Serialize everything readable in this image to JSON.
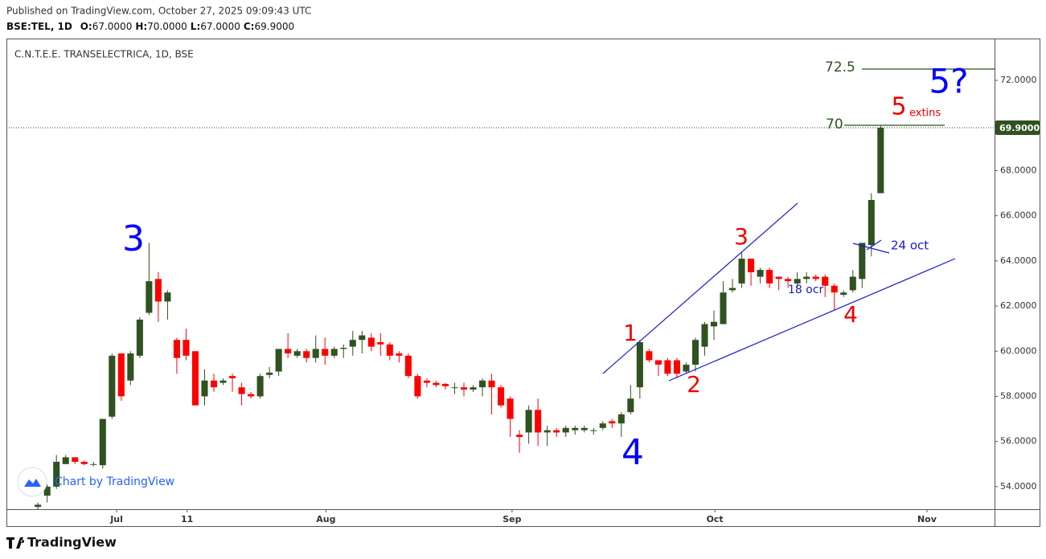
{
  "header": {
    "published": "Published on TradingView.com, October 27, 2025 09:09:43 UTC",
    "symbol": "BSE:TEL, 1D",
    "ohlc": [
      {
        "key": "O:",
        "value": "67.0000"
      },
      {
        "key": "H:",
        "value": "70.0000"
      },
      {
        "key": "L:",
        "value": "67.0000"
      },
      {
        "key": "C:",
        "value": "69.9000"
      }
    ]
  },
  "chart_data": {
    "type": "candlestick",
    "title": "C.N.T.E.E. TRANSELECTRICA, 1D, BSE",
    "up_color": "#2f5220",
    "down_color": "#ff0000",
    "open": [
      53.1,
      53.6,
      54.0,
      55.0,
      55.3,
      55.1,
      55.0,
      54.95,
      57.1,
      59.9,
      58.7,
      59.8,
      61.7,
      63.2,
      62.2,
      60.5,
      60.5,
      60.0,
      58.0,
      58.7,
      58.6,
      58.9,
      58.4,
      58.1,
      58.0,
      58.95,
      59.1,
      60.1,
      59.8,
      60.0,
      59.7,
      60.1,
      59.8,
      60.1,
      60.2,
      60.5,
      60.6,
      60.4,
      60.3,
      59.9,
      59.8,
      58.9,
      58.7,
      58.6,
      58.55,
      58.4,
      58.4,
      58.3,
      58.4,
      58.7,
      58.4,
      57.9,
      56.3,
      56.4,
      57.4,
      56.4,
      56.5,
      56.4,
      56.5,
      56.5,
      56.5,
      56.6,
      56.9,
      56.8,
      57.3,
      58.4,
      60.0,
      59.6,
      59.6,
      59.6,
      59.1,
      59.4,
      60.2,
      61.1,
      61.2,
      62.7,
      63.0,
      64.1,
      63.3,
      63.6,
      63.3,
      63.2,
      63.0,
      63.2,
      63.3,
      63.3,
      62.9,
      62.5,
      62.7,
      63.2,
      64.7,
      67.0
    ],
    "high": [
      53.3,
      54.1,
      55.4,
      55.4,
      55.3,
      55.15,
      55.1,
      57.0,
      59.9,
      59.9,
      60.0,
      61.5,
      64.8,
      63.5,
      62.7,
      60.6,
      61.0,
      60.0,
      59.2,
      59.0,
      58.8,
      59.0,
      58.6,
      58.2,
      59.0,
      59.3,
      60.1,
      60.8,
      60.1,
      60.1,
      60.7,
      60.6,
      60.2,
      60.3,
      60.9,
      60.9,
      60.8,
      60.8,
      60.4,
      60.0,
      59.9,
      59.0,
      58.8,
      58.7,
      58.6,
      58.6,
      58.6,
      58.5,
      58.8,
      59.0,
      58.5,
      58.0,
      56.5,
      57.6,
      57.9,
      56.7,
      56.6,
      56.7,
      56.7,
      56.7,
      56.6,
      56.9,
      57.0,
      57.3,
      58.5,
      60.5,
      60.1,
      59.6,
      59.7,
      59.7,
      59.5,
      60.6,
      61.3,
      61.8,
      63.1,
      63.2,
      64.4,
      64.1,
      63.7,
      63.7,
      63.3,
      63.3,
      63.5,
      63.5,
      63.4,
      63.4,
      63.0,
      62.7,
      63.6,
      64.8,
      67.0,
      70.0
    ],
    "low": [
      53.0,
      53.3,
      53.9,
      55.0,
      55.0,
      54.95,
      54.9,
      54.8,
      57.0,
      57.8,
      58.5,
      59.7,
      61.6,
      61.3,
      61.4,
      59.0,
      59.6,
      57.6,
      57.6,
      58.2,
      58.5,
      58.2,
      57.6,
      57.9,
      57.9,
      58.8,
      58.9,
      59.7,
      59.7,
      59.5,
      59.5,
      59.4,
      59.7,
      59.7,
      59.8,
      59.9,
      60.0,
      59.8,
      59.6,
      59.5,
      58.8,
      57.9,
      58.4,
      58.4,
      58.3,
      58.1,
      58.0,
      58.2,
      58.0,
      57.2,
      57.5,
      56.2,
      55.5,
      55.9,
      55.8,
      55.8,
      56.2,
      56.2,
      56.3,
      56.4,
      56.3,
      56.5,
      56.6,
      56.2,
      57.2,
      57.9,
      59.5,
      58.9,
      58.9,
      58.8,
      59.0,
      59.1,
      59.8,
      60.5,
      61.2,
      62.6,
      62.8,
      62.9,
      63.0,
      62.8,
      62.7,
      62.8,
      62.8,
      63.0,
      63.1,
      62.4,
      61.8,
      62.4,
      62.6,
      62.8,
      64.2,
      67.0
    ],
    "close": [
      53.2,
      54.0,
      55.1,
      55.3,
      55.1,
      55.0,
      55.0,
      57.0,
      59.8,
      58.0,
      59.9,
      61.4,
      63.1,
      62.2,
      62.6,
      59.7,
      59.8,
      57.6,
      58.7,
      58.4,
      58.7,
      58.8,
      58.1,
      58.0,
      58.9,
      59.05,
      60.1,
      59.9,
      60.0,
      59.7,
      60.1,
      59.8,
      60.1,
      60.15,
      60.5,
      60.7,
      60.2,
      60.3,
      59.8,
      59.8,
      58.9,
      58.0,
      58.6,
      58.5,
      58.45,
      58.4,
      58.3,
      58.4,
      58.7,
      58.4,
      57.6,
      57.0,
      56.2,
      57.4,
      56.4,
      56.5,
      56.4,
      56.6,
      56.6,
      56.6,
      56.5,
      56.8,
      56.8,
      57.2,
      57.9,
      60.4,
      59.6,
      59.4,
      59.0,
      59.0,
      59.4,
      60.5,
      61.2,
      61.3,
      62.6,
      62.8,
      64.1,
      63.5,
      63.6,
      63.0,
      63.2,
      63.1,
      63.2,
      63.3,
      63.2,
      62.9,
      62.6,
      62.6,
      63.3,
      64.8,
      66.7,
      69.9
    ],
    "xlim": [
      -3.4,
      103.3
    ],
    "xticks": [
      {
        "value": 8.5,
        "label": "Jul"
      },
      {
        "value": 16.1,
        "label": "11"
      },
      {
        "value": 31.1,
        "label": "Aug"
      },
      {
        "value": 51.2,
        "label": "Sep"
      },
      {
        "value": 73.1,
        "label": "Oct"
      },
      {
        "value": 96.0,
        "label": "Nov"
      }
    ],
    "ylim": [
      53.0,
      73.85
    ],
    "yticks": [
      {
        "value": 54,
        "label": "54.0000"
      },
      {
        "value": 56,
        "label": "56.0000"
      },
      {
        "value": 58,
        "label": "58.0000"
      },
      {
        "value": 60,
        "label": "60.0000"
      },
      {
        "value": 62,
        "label": "62.0000"
      },
      {
        "value": 64,
        "label": "64.0000"
      },
      {
        "value": 66,
        "label": "66.0000"
      },
      {
        "value": 68,
        "label": "68.0000"
      },
      {
        "value": 70,
        "label": "70.0000"
      },
      {
        "value": 72,
        "label": "72.0000"
      }
    ],
    "last_price": {
      "value": 69.9,
      "label": "69.9000"
    },
    "grid": false,
    "annotations": [
      {
        "text": "3",
        "color": "#0000ff"
      },
      {
        "text": "4",
        "color": "#0000ff"
      },
      {
        "text": "1",
        "color": "#ee0000"
      },
      {
        "text": "2",
        "color": "#ee0000"
      },
      {
        "text": "3",
        "color": "#ee0000"
      },
      {
        "text": "4",
        "color": "#ee0000"
      },
      {
        "text": "5",
        "color": "#ee0000"
      },
      {
        "text": "extins",
        "color": "#ee0000"
      },
      {
        "text": "5?",
        "color": "#0000ff"
      },
      {
        "text": "72.5",
        "color": "#2f5220"
      },
      {
        "text": "70",
        "color": "#2f5220"
      },
      {
        "text": "18 ocr",
        "color": "#1a1acc"
      },
      {
        "text": "24 oct",
        "color": "#1a1acc"
      }
    ]
  },
  "watermark": "Chart by TradingView",
  "footer": "TradingView"
}
